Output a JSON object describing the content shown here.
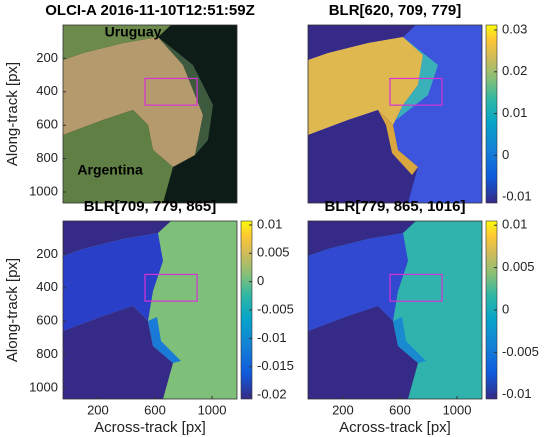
{
  "chart_data": [
    {
      "type": "image",
      "title": "OLCI-A 2016-11-10T12:51:59Z",
      "y_label": "Along-track [px]",
      "xlim": [
        -45,
        1175
      ],
      "ylim": [
        0,
        1066
      ],
      "y_direction": "reverse",
      "yticks": [
        200,
        400,
        600,
        800,
        1000
      ],
      "annotations": [
        {
          "text": "Uruguay",
          "x": 446,
          "y": 48
        },
        {
          "text": "Argentina",
          "x": 285,
          "y": 873
        }
      ],
      "box": {
        "x": [
          530,
          895
        ],
        "y": [
          320,
          480
        ],
        "color": "#d633d6"
      }
    },
    {
      "type": "image",
      "title": "BLR[620, 709, 779]",
      "xlim": [
        -45,
        1175
      ],
      "ylim": [
        0,
        1066
      ],
      "y_direction": "reverse",
      "colorbar": {
        "lim": [
          -0.0114,
          0.0312
        ],
        "ticks": [
          0.03,
          0.02,
          0.01,
          0,
          -0.01
        ]
      },
      "box": {
        "x": [
          530,
          895
        ],
        "y": [
          320,
          480
        ],
        "color": "#d633d6"
      }
    },
    {
      "type": "image",
      "title": "BLR[709, 779, 865]",
      "x_label": "Across-track [px]",
      "y_label": "Along-track [px]",
      "xlim": [
        -45,
        1175
      ],
      "ylim": [
        0,
        1066
      ],
      "y_direction": "reverse",
      "xticks": [
        200,
        600,
        1000
      ],
      "yticks": [
        200,
        400,
        600,
        800,
        1000
      ],
      "colorbar": {
        "lim": [
          -0.0207,
          0.0107
        ],
        "ticks": [
          0.01,
          0.005,
          0,
          -0.005,
          -0.01,
          -0.015,
          -0.02
        ]
      },
      "box": {
        "x": [
          530,
          895
        ],
        "y": [
          320,
          480
        ],
        "color": "#d633d6"
      }
    },
    {
      "type": "image",
      "title": "BLR[779, 865, 1016]",
      "x_label": "Across-track [px]",
      "xlim": [
        -45,
        1175
      ],
      "ylim": [
        0,
        1066
      ],
      "y_direction": "reverse",
      "xticks": [
        200,
        600,
        1000
      ],
      "colorbar": {
        "lim": [
          -0.0105,
          0.0105
        ],
        "ticks": [
          0.01,
          0.005,
          0,
          -0.005,
          -0.01
        ]
      },
      "box": {
        "x": [
          530,
          895
        ],
        "y": [
          320,
          480
        ],
        "color": "#d633d6"
      }
    }
  ]
}
